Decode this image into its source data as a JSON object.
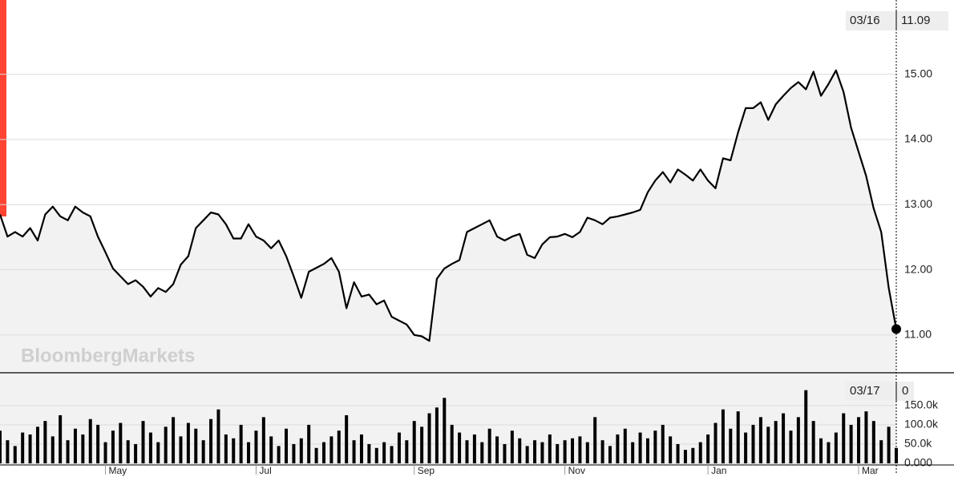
{
  "watermark": "BloombergMarkets",
  "chart_data": [
    {
      "type": "line",
      "color": "#000000",
      "fill": "#f2f2f2",
      "values": [
        12.85,
        12.51,
        12.58,
        12.51,
        12.64,
        12.45,
        12.85,
        12.97,
        12.82,
        12.76,
        12.97,
        12.88,
        12.82,
        12.51,
        12.27,
        12.02,
        11.9,
        11.78,
        11.84,
        11.74,
        11.59,
        11.72,
        11.66,
        11.78,
        12.08,
        12.21,
        12.64,
        12.76,
        12.88,
        12.85,
        12.7,
        12.48,
        12.48,
        12.7,
        12.51,
        12.45,
        12.33,
        12.45,
        12.21,
        11.9,
        11.57,
        11.97,
        12.03,
        12.09,
        12.18,
        11.97,
        11.41,
        11.81,
        11.59,
        11.62,
        11.47,
        11.53,
        11.28,
        11.22,
        11.16,
        11.0,
        10.98,
        10.91,
        11.86,
        12.02,
        12.09,
        12.15,
        12.58,
        12.64,
        12.7,
        12.76,
        12.51,
        12.45,
        12.51,
        12.55,
        12.23,
        12.18,
        12.39,
        12.5,
        12.51,
        12.55,
        12.5,
        12.58,
        12.8,
        12.76,
        12.7,
        12.8,
        12.82,
        12.85,
        12.88,
        12.92,
        13.19,
        13.37,
        13.5,
        13.34,
        13.54,
        13.46,
        13.37,
        13.54,
        13.37,
        13.25,
        13.71,
        13.68,
        14.11,
        14.48,
        14.48,
        14.57,
        14.3,
        14.54,
        14.67,
        14.79,
        14.88,
        14.77,
        15.04,
        14.67,
        14.85,
        15.06,
        14.73,
        14.18,
        13.81,
        13.44,
        12.94,
        12.58,
        11.72,
        11.09
      ],
      "categories": [
        null,
        null,
        null,
        null,
        null,
        null,
        null,
        null,
        null,
        null,
        null,
        null,
        null,
        null,
        "May",
        null,
        null,
        null,
        null,
        null,
        null,
        null,
        null,
        null,
        null,
        null,
        null,
        null,
        null,
        null,
        null,
        null,
        null,
        null,
        "Jul",
        null,
        null,
        null,
        null,
        null,
        null,
        null,
        null,
        null,
        null,
        null,
        null,
        null,
        null,
        null,
        null,
        null,
        null,
        null,
        null,
        "Sep",
        null,
        null,
        null,
        null,
        null,
        null,
        null,
        null,
        null,
        null,
        null,
        null,
        null,
        null,
        null,
        null,
        null,
        null,
        null,
        "Nov",
        null,
        null,
        null,
        null,
        null,
        null,
        null,
        null,
        null,
        null,
        null,
        null,
        null,
        null,
        null,
        null,
        null,
        null,
        "Jan",
        null,
        null,
        null,
        null,
        null,
        null,
        null,
        null,
        null,
        null,
        null,
        null,
        null,
        null,
        null,
        null,
        null,
        null,
        null,
        "Mar",
        null,
        null,
        null,
        null,
        null
      ],
      "ylim": [
        10.42,
        16.14
      ],
      "yticks": [
        {
          "value": 11,
          "label": "11.00"
        },
        {
          "value": 12,
          "label": "12.00"
        },
        {
          "value": 13,
          "label": "13.00"
        },
        {
          "value": 14,
          "label": "14.00"
        },
        {
          "value": 15,
          "label": "15.00"
        }
      ],
      "grid": true,
      "crosshair_date": "03/16"
    },
    {
      "type": "bar",
      "color": "#000000",
      "values": [
        85000,
        60000,
        45000,
        80000,
        75000,
        95000,
        110000,
        70000,
        125000,
        60000,
        90000,
        75000,
        115000,
        100000,
        55000,
        85000,
        105000,
        60000,
        50000,
        110000,
        80000,
        55000,
        95000,
        120000,
        70000,
        105000,
        90000,
        60000,
        115000,
        140000,
        75000,
        65000,
        100000,
        55000,
        85000,
        120000,
        70000,
        45000,
        90000,
        50000,
        65000,
        100000,
        40000,
        55000,
        70000,
        85000,
        125000,
        60000,
        75000,
        50000,
        40000,
        55000,
        45000,
        80000,
        60000,
        110000,
        95000,
        130000,
        145000,
        170000,
        100000,
        80000,
        60000,
        75000,
        55000,
        90000,
        70000,
        50000,
        85000,
        65000,
        45000,
        60000,
        55000,
        75000,
        50000,
        60000,
        65000,
        70000,
        55000,
        120000,
        60000,
        45000,
        75000,
        90000,
        55000,
        80000,
        65000,
        85000,
        100000,
        70000,
        50000,
        35000,
        40000,
        55000,
        75000,
        105000,
        140000,
        90000,
        135000,
        80000,
        100000,
        120000,
        95000,
        110000,
        130000,
        85000,
        120000,
        190000,
        110000,
        65000,
        55000,
        80000,
        130000,
        100000,
        120000,
        135000,
        110000,
        60000,
        95000,
        40000
      ],
      "ylim": [
        0,
        231000
      ],
      "yticks": [
        {
          "value": 0,
          "label": "0.000"
        },
        {
          "value": 50000,
          "label": "50.0k"
        },
        {
          "value": 100000,
          "label": "100.0k"
        },
        {
          "value": 150000,
          "label": "150.0k"
        }
      ],
      "grid": true,
      "crosshair_date": "03/17",
      "crosshair_value": 0
    }
  ]
}
